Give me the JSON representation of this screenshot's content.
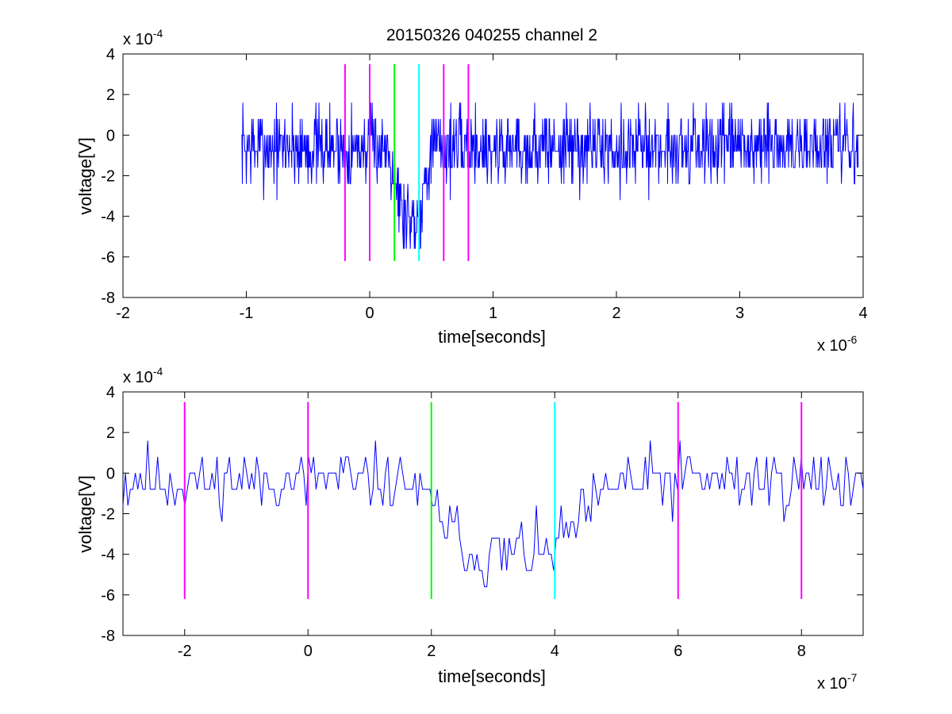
{
  "colors": {
    "background": "#ffffff",
    "trace": "#0000ff",
    "marker_magenta": "#ff00ff",
    "marker_green": "#00ff00",
    "marker_cyan": "#00ffff",
    "axes": "#000000"
  },
  "chart_data": [
    {
      "type": "line",
      "title": "20150326 040255 channel 2",
      "xlabel": "time[seconds]",
      "ylabel": "voltage[V]",
      "x_exponent_base": "x 10",
      "x_exponent_power": "-6",
      "y_exponent_base": "x 10",
      "y_exponent_power": "-4",
      "x_unit_scale": 1e-06,
      "y_unit_scale": 0.0001,
      "xlim": [
        -2,
        4
      ],
      "ylim": [
        -8,
        4
      ],
      "xticks": [
        -2,
        -1,
        0,
        1,
        2,
        3,
        4
      ],
      "xtick_labels": [
        "-2",
        "-1",
        "0",
        "1",
        "2",
        "3",
        "4"
      ],
      "yticks": [
        -8,
        -6,
        -4,
        -2,
        0,
        2,
        4
      ],
      "ytick_labels": [
        "-8",
        "-6",
        "-4",
        "-2",
        "0",
        "2",
        "4"
      ],
      "grid": false,
      "trace": {
        "x_start": -1.04,
        "x_end": 3.96,
        "dip_start": 0.16,
        "dip_end": 0.5,
        "noise_seed": 7,
        "quantization_step": 0.8,
        "noise_amplitude": 1.2,
        "baseline": -0.6,
        "dip_depth": -3.4,
        "samples": 1250
      },
      "markers": [
        {
          "x": -0.2,
          "y_bottom": -6.2,
          "y_top": 3.5,
          "color": "#ff00ff"
        },
        {
          "x": 0.0,
          "y_bottom": -6.2,
          "y_top": 3.5,
          "color": "#ff00ff"
        },
        {
          "x": 0.2,
          "y_bottom": -6.2,
          "y_top": 3.5,
          "color": "#00ff00"
        },
        {
          "x": 0.4,
          "y_bottom": -6.2,
          "y_top": 3.5,
          "color": "#00ffff"
        },
        {
          "x": 0.6,
          "y_bottom": -6.2,
          "y_top": 3.5,
          "color": "#ff00ff"
        },
        {
          "x": 0.8,
          "y_bottom": -6.2,
          "y_top": 3.5,
          "color": "#ff00ff"
        }
      ]
    },
    {
      "type": "line",
      "title": "",
      "xlabel": "time[seconds]",
      "ylabel": "voltage[V]",
      "x_exponent_base": "x 10",
      "x_exponent_power": "-7",
      "y_exponent_base": "x 10",
      "y_exponent_power": "-4",
      "x_unit_scale": 1e-07,
      "y_unit_scale": 0.0001,
      "xlim": [
        -3,
        9
      ],
      "ylim": [
        -8,
        4
      ],
      "xticks": [
        -2,
        0,
        2,
        4,
        6,
        8
      ],
      "xtick_labels": [
        "-2",
        "0",
        "2",
        "4",
        "6",
        "8"
      ],
      "yticks": [
        -8,
        -6,
        -4,
        -2,
        0,
        2,
        4
      ],
      "ytick_labels": [
        "-8",
        "-6",
        "-4",
        "-2",
        "0",
        "2",
        "4"
      ],
      "grid": false,
      "trace": {
        "x_start": -3,
        "x_end": 9,
        "dip_start": 1.6,
        "dip_end": 5.0,
        "noise_seed": 11,
        "quantization_step": 0.8,
        "noise_amplitude": 1.0,
        "baseline": -0.4,
        "dip_depth": -3.6,
        "samples": 300
      },
      "markers": [
        {
          "x": -2,
          "y_bottom": -6.2,
          "y_top": 3.5,
          "color": "#ff00ff"
        },
        {
          "x": 0,
          "y_bottom": -6.2,
          "y_top": 3.5,
          "color": "#ff00ff"
        },
        {
          "x": 2,
          "y_bottom": -6.2,
          "y_top": 3.5,
          "color": "#00ff00"
        },
        {
          "x": 4,
          "y_bottom": -6.2,
          "y_top": 3.5,
          "color": "#00ffff"
        },
        {
          "x": 6,
          "y_bottom": -6.2,
          "y_top": 3.5,
          "color": "#ff00ff"
        },
        {
          "x": 8,
          "y_bottom": -6.2,
          "y_top": 3.5,
          "color": "#ff00ff"
        }
      ]
    }
  ]
}
